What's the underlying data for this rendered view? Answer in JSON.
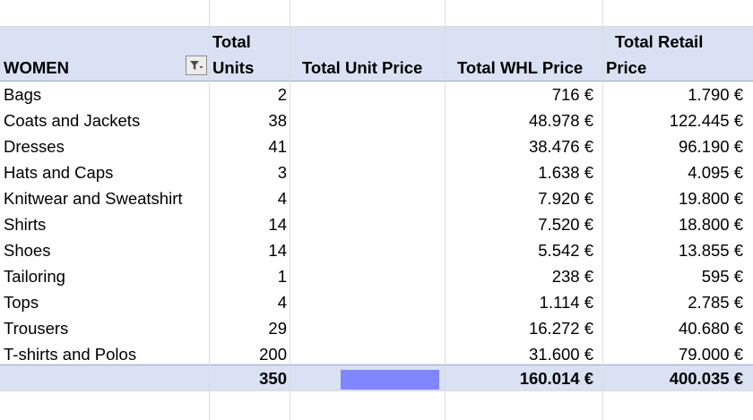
{
  "pivot": {
    "headers": {
      "row_label": "WOMEN",
      "units_line1": "Total",
      "units_line2": "Units",
      "unit_price": "Total Unit Price",
      "whl_price": "Total WHL Price",
      "retail_line1": "Total Retail",
      "retail_line2": "Price"
    },
    "rows": [
      {
        "category": "Bags",
        "units": "2",
        "unit_price": "",
        "whl": "716 €",
        "retail": "1.790 €"
      },
      {
        "category": "Coats and Jackets",
        "units": "38",
        "unit_price": "",
        "whl": "48.978 €",
        "retail": "122.445 €"
      },
      {
        "category": "Dresses",
        "units": "41",
        "unit_price": "",
        "whl": "38.476 €",
        "retail": "96.190 €"
      },
      {
        "category": "Hats and Caps",
        "units": "3",
        "unit_price": "",
        "whl": "1.638 €",
        "retail": "4.095 €"
      },
      {
        "category": "Knitwear and Sweatshirt",
        "units": "4",
        "unit_price": "",
        "whl": "7.920 €",
        "retail": "19.800 €"
      },
      {
        "category": "Shirts",
        "units": "14",
        "unit_price": "",
        "whl": "7.520 €",
        "retail": "18.800 €"
      },
      {
        "category": "Shoes",
        "units": "14",
        "unit_price": "",
        "whl": "5.542 €",
        "retail": "13.855 €"
      },
      {
        "category": "Tailoring",
        "units": "1",
        "unit_price": "",
        "whl": "238 €",
        "retail": "595 €"
      },
      {
        "category": "Tops",
        "units": "4",
        "unit_price": "",
        "whl": "1.114 €",
        "retail": "2.785 €"
      },
      {
        "category": "Trousers",
        "units": "29",
        "unit_price": "",
        "whl": "16.272 €",
        "retail": "40.680 €"
      },
      {
        "category": "T-shirts and Polos",
        "units": "200",
        "unit_price": "",
        "whl": "31.600 €",
        "retail": "79.000 €"
      }
    ],
    "totals": {
      "units": "350",
      "whl": "160.014 €",
      "retail": "400.035 €"
    }
  },
  "colors": {
    "header_fill": "#d9e1f2",
    "border_accent": "#8ea9db",
    "gridline": "#dadcdf",
    "redaction": "#7f86ff"
  },
  "icons": {
    "filter": "filter-dropdown-icon"
  }
}
